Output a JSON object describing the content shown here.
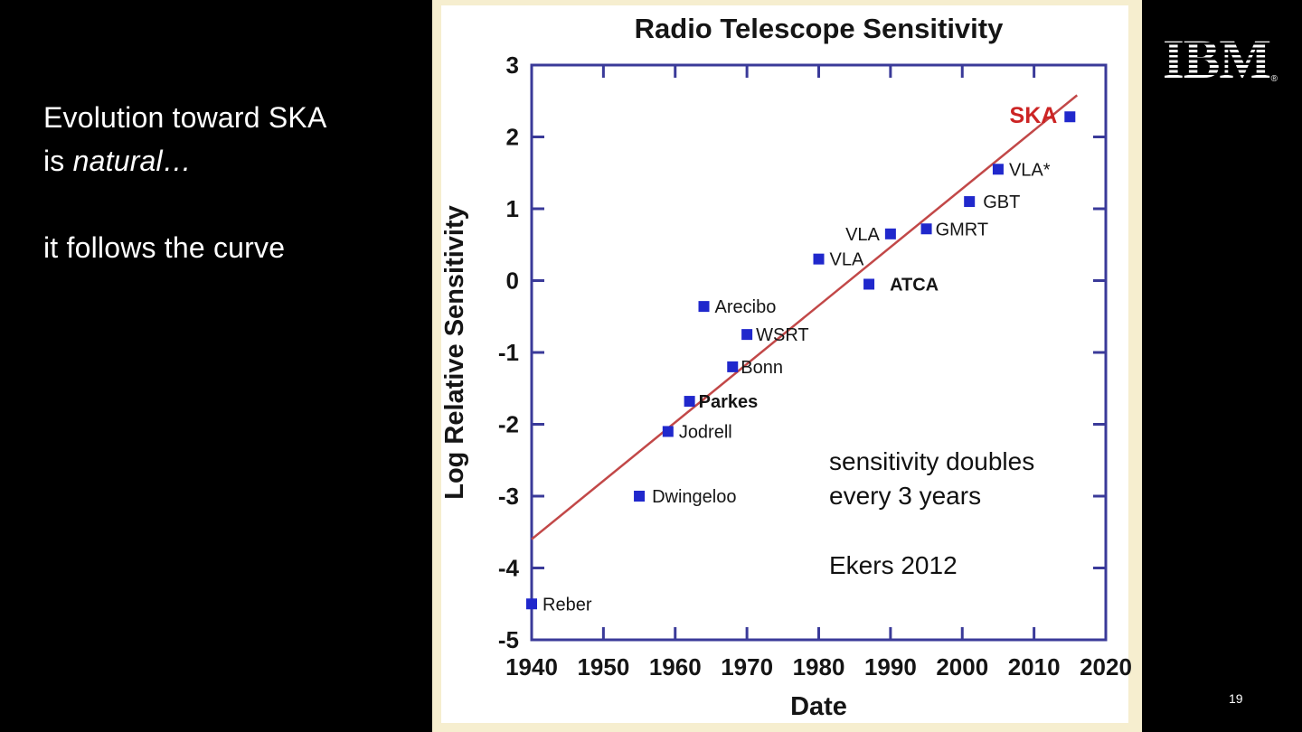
{
  "slide": {
    "background": "#000000",
    "text_block": {
      "line1": "Evolution toward SKA",
      "line2_prefix": "is ",
      "line2_italic": "natural…",
      "line3": "it follows the curve"
    },
    "logo_text": "IBM",
    "logo_registered": "®",
    "page_number": "19"
  },
  "chart_data": {
    "type": "scatter",
    "title": "Radio Telescope Sensitivity",
    "xlabel": "Date",
    "ylabel": "Log Relative Sensitivity",
    "xlim": [
      1940,
      2020
    ],
    "ylim": [
      -5,
      3
    ],
    "x_ticks": [
      1940,
      1950,
      1960,
      1970,
      1980,
      1990,
      2000,
      2010,
      2020
    ],
    "y_ticks": [
      3,
      2,
      1,
      0,
      -1,
      -2,
      -3,
      -4,
      -5
    ],
    "grid": false,
    "legend": "none",
    "series": [
      {
        "name": "telescopes",
        "points": [
          {
            "label": "Reber",
            "x": 1940,
            "y": -4.5
          },
          {
            "label": "Dwingeloo",
            "x": 1955,
            "y": -3.0,
            "label_dx": 14
          },
          {
            "label": "Jodrell",
            "x": 1959,
            "y": -2.1
          },
          {
            "label": "Parkes",
            "x": 1962,
            "y": -1.68,
            "bold": true,
            "label_dx": 10
          },
          {
            "label": "Bonn",
            "x": 1968,
            "y": -1.2,
            "label_dx": 9
          },
          {
            "label": "WSRT",
            "x": 1970,
            "y": -0.75,
            "label_dx": 10
          },
          {
            "label": "Arecibo",
            "x": 1964,
            "y": -0.36
          },
          {
            "label": "VLA",
            "x": 1980,
            "y": 0.3
          },
          {
            "label": "ATCA",
            "x": 1987,
            "y": -0.05,
            "bold": true,
            "label_dx": 23
          },
          {
            "label": "VLA",
            "x": 1990,
            "y": 0.65,
            "label_side": "left",
            "label_dx": -12
          },
          {
            "label": "GMRT",
            "x": 1995,
            "y": 0.72,
            "label_dx": 10
          },
          {
            "label": "GBT",
            "x": 2001,
            "y": 1.1,
            "label_dx": 15
          },
          {
            "label": "VLA*",
            "x": 2005,
            "y": 1.55
          },
          {
            "label": "SKA",
            "x": 2015,
            "y": 2.28,
            "label_side": "left",
            "bold": true,
            "label_color": "#cc2424",
            "label_size": 25,
            "label_dx": -14
          }
        ]
      }
    ],
    "trend_line": {
      "x1": 1940,
      "y1": -3.6,
      "x2": 2016,
      "y2": 2.58
    },
    "annotation": {
      "line1": "sensitivity doubles",
      "line2": "every 3 years",
      "line3": "Ekers 2012"
    },
    "colors": {
      "frame": "#3a3a99",
      "marker": "#2028cc",
      "trend": "#c24848",
      "panel_border": "#f6eecf",
      "plot_bg": "#ffffff",
      "text": "#151515"
    }
  }
}
